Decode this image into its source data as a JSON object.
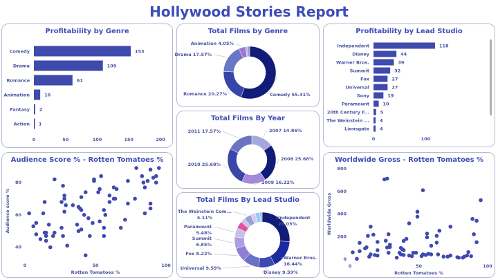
{
  "page_title": "Hollywood Stories Report",
  "chart_data": [
    {
      "id": "genre_profit",
      "type": "bar",
      "orientation": "horizontal",
      "title": "Profitability by Genre",
      "categories": [
        "Comedy",
        "Drama",
        "Romance",
        "Animation",
        "Fantasy",
        "Action"
      ],
      "values": [
        153,
        109,
        61,
        10,
        2,
        1
      ],
      "xlim": [
        0,
        200
      ],
      "xticks": [
        "0",
        "50",
        "100",
        "150",
        "200"
      ],
      "color": "#3f4aad",
      "data_labels": true
    },
    {
      "id": "studio_profit",
      "type": "bar",
      "orientation": "horizontal",
      "title": "Profitability by Lead Studio",
      "categories": [
        "Independent",
        "Disney",
        "Warner Bros.",
        "Summit",
        "Fox",
        "Universal",
        "Sony",
        "Paramount",
        "20th Century F...",
        "The Weinstein ...",
        "Lionsgate"
      ],
      "values": [
        118,
        44,
        39,
        32,
        27,
        27,
        19,
        10,
        5,
        4,
        4
      ],
      "xlim": [
        0,
        130
      ],
      "xticks": [
        "0",
        "100"
      ],
      "color": "#3f4aad",
      "data_labels": true,
      "scrollbar": true
    },
    {
      "id": "genre_films",
      "type": "pie",
      "donut": true,
      "title": "Total Films by Genre",
      "slices": [
        {
          "label": "Comedy 55.41%",
          "value": 55.41,
          "color": "#111c78"
        },
        {
          "label": "Romance 20.27%",
          "value": 20.27,
          "color": "#3545a8"
        },
        {
          "label": "Drama 17.57%",
          "value": 17.57,
          "color": "#6a76c6"
        },
        {
          "label": "Animation 4.05%",
          "value": 4.05,
          "color": "#9d74d0"
        },
        {
          "label": "",
          "value": 1.35,
          "color": "#b8b3e6"
        },
        {
          "label": "",
          "value": 1.35,
          "color": "#8e93d0"
        }
      ]
    },
    {
      "id": "year_films",
      "type": "pie",
      "donut": true,
      "title": "Total Films By Year",
      "slices": [
        {
          "label": "2007 14.86%",
          "value": 14.86,
          "color": "#a6a8dc"
        },
        {
          "label": "2008 25.68%",
          "value": 25.68,
          "color": "#111c78"
        },
        {
          "label": "2009 16.22%",
          "value": 16.22,
          "color": "#a48ad8"
        },
        {
          "label": "2010 25.68%",
          "value": 25.68,
          "color": "#3a47a8"
        },
        {
          "label": "2011 17.57%",
          "value": 17.57,
          "color": "#6a74c0"
        }
      ]
    },
    {
      "id": "studio_films",
      "type": "pie",
      "donut": true,
      "title": "Total Films By Lead Studio",
      "slices": [
        {
          "label": "Independent 26.03%",
          "value": 26.03,
          "color": "#111c78"
        },
        {
          "label": "Warner Bros. 16.44%",
          "value": 16.44,
          "color": "#1c2aa0"
        },
        {
          "label": "Disney 9.59%",
          "value": 9.59,
          "color": "#3d4bb0"
        },
        {
          "label": "Universal 9.59%",
          "value": 9.59,
          "color": "#6a72c6"
        },
        {
          "label": "Fox 8.22%",
          "value": 8.22,
          "color": "#8e7ed4"
        },
        {
          "label": "Summit 6.85%",
          "value": 6.85,
          "color": "#b09ee0"
        },
        {
          "label": "Paramount 5.48%",
          "value": 5.48,
          "color": "#c9c0ea"
        },
        {
          "label": "",
          "value": 4.11,
          "color": "#e4509e"
        },
        {
          "label": "",
          "value": 2.74,
          "color": "#c3c6e8"
        },
        {
          "label": "The Weinstein Com... 4.11%",
          "value": 4.11,
          "color": "#9aa0d6"
        },
        {
          "label": "",
          "value": 2.74,
          "color": "#d2cdf0"
        },
        {
          "label": "",
          "value": 2.74,
          "color": "#8ecff5"
        },
        {
          "label": "",
          "value": 1.37,
          "color": "#b4b0d8"
        }
      ]
    },
    {
      "id": "aud_rt",
      "type": "scatter",
      "title": "Audience Score % - Rotten Tomatoes %",
      "xlabel": "Rotten Tomatoes %",
      "ylabel": "Audience score %",
      "xlim": [
        0,
        100
      ],
      "ylim": [
        33,
        92
      ],
      "xticks": [
        0,
        50,
        100
      ],
      "yticks": [
        40,
        60,
        80
      ],
      "color": "#3f4aad",
      "points": [
        [
          3,
          61
        ],
        [
          6,
          53
        ],
        [
          8,
          55
        ],
        [
          8,
          48
        ],
        [
          11,
          45
        ],
        [
          14,
          68
        ],
        [
          13,
          61
        ],
        [
          14,
          49
        ],
        [
          15,
          49
        ],
        [
          15,
          47
        ],
        [
          15,
          44
        ],
        [
          17,
          54
        ],
        [
          18,
          40
        ],
        [
          20,
          47
        ],
        [
          21,
          49
        ],
        [
          21,
          82
        ],
        [
          26,
          52
        ],
        [
          27,
          47
        ],
        [
          27,
          78
        ],
        [
          26,
          68
        ],
        [
          28,
          72
        ],
        [
          28,
          70
        ],
        [
          29,
          66
        ],
        [
          28,
          62
        ],
        [
          30,
          41
        ],
        [
          34,
          66
        ],
        [
          37,
          54
        ],
        [
          38,
          50
        ],
        [
          38,
          65
        ],
        [
          39,
          64
        ],
        [
          40,
          63
        ],
        [
          40,
          51
        ],
        [
          40,
          71
        ],
        [
          42,
          60
        ],
        [
          43,
          74
        ],
        [
          43,
          35
        ],
        [
          45,
          58
        ],
        [
          46,
          47
        ],
        [
          48,
          55
        ],
        [
          49,
          82
        ],
        [
          49,
          81
        ],
        [
          52,
          74
        ],
        [
          53,
          76
        ],
        [
          53,
          56
        ],
        [
          54,
          84
        ],
        [
          56,
          63
        ],
        [
          56,
          52
        ],
        [
          56,
          47
        ],
        [
          57,
          60
        ],
        [
          60,
          72
        ],
        [
          60,
          68
        ],
        [
          63,
          77
        ],
        [
          63,
          70
        ],
        [
          64,
          70
        ],
        [
          65,
          76
        ],
        [
          68,
          52
        ],
        [
          71,
          57
        ],
        [
          73,
          81
        ],
        [
          73,
          67
        ],
        [
          78,
          70
        ],
        [
          79,
          89
        ],
        [
          83,
          84
        ],
        [
          84,
          80
        ],
        [
          85,
          77
        ],
        [
          85,
          61
        ],
        [
          87,
          81
        ],
        [
          89,
          88
        ],
        [
          89,
          67
        ],
        [
          89,
          64
        ],
        [
          91,
          83
        ],
        [
          93,
          84
        ],
        [
          93,
          80
        ],
        [
          95,
          89
        ]
      ]
    },
    {
      "id": "gross_rt",
      "type": "scatter",
      "title": "Worldwide Gross - Rotten Tomatoes %",
      "xlabel": "Rotten Tomatoes %",
      "ylabel": "Worldwide Gross",
      "xlim": [
        0,
        100
      ],
      "ylim": [
        0,
        800
      ],
      "xticks": [
        0,
        50,
        100
      ],
      "yticks": [
        0,
        200,
        400,
        600,
        800
      ],
      "color": "#3f4aad",
      "points": [
        [
          2,
          61
        ],
        [
          5,
          4
        ],
        [
          7,
          145
        ],
        [
          7,
          72
        ],
        [
          11,
          96
        ],
        [
          12,
          106
        ],
        [
          13,
          207
        ],
        [
          14,
          23
        ],
        [
          15,
          288
        ],
        [
          15,
          43
        ],
        [
          17,
          217
        ],
        [
          18,
          37
        ],
        [
          20,
          80
        ],
        [
          20,
          153
        ],
        [
          20,
          33
        ],
        [
          25,
          706
        ],
        [
          27,
          712
        ],
        [
          26,
          164
        ],
        [
          27,
          104
        ],
        [
          28,
          221
        ],
        [
          28,
          57
        ],
        [
          29,
          108
        ],
        [
          29,
          129
        ],
        [
          34,
          14
        ],
        [
          36,
          57
        ],
        [
          37,
          100
        ],
        [
          38,
          88
        ],
        [
          39,
          80
        ],
        [
          39,
          162
        ],
        [
          37,
          43
        ],
        [
          39,
          37
        ],
        [
          41,
          180
        ],
        [
          43,
          317
        ],
        [
          43,
          33
        ],
        [
          45,
          27
        ],
        [
          46,
          57
        ],
        [
          48,
          57
        ],
        [
          49,
          420
        ],
        [
          49,
          376
        ],
        [
          52,
          27
        ],
        [
          53,
          610
        ],
        [
          53,
          43
        ],
        [
          55,
          37
        ],
        [
          56,
          227
        ],
        [
          56,
          194
        ],
        [
          57,
          49
        ],
        [
          59,
          119
        ],
        [
          59,
          43
        ],
        [
          63,
          147
        ],
        [
          63,
          207
        ],
        [
          64,
          43
        ],
        [
          65,
          252
        ],
        [
          68,
          23
        ],
        [
          71,
          23
        ],
        [
          73,
          288
        ],
        [
          73,
          33
        ],
        [
          78,
          18
        ],
        [
          79,
          14
        ],
        [
          82,
          14
        ],
        [
          83,
          23
        ],
        [
          85,
          33
        ],
        [
          86,
          63
        ],
        [
          88,
          27
        ],
        [
          89,
          356
        ],
        [
          90,
          221
        ],
        [
          92,
          151
        ],
        [
          92,
          340
        ],
        [
          95,
          522
        ]
      ]
    }
  ]
}
